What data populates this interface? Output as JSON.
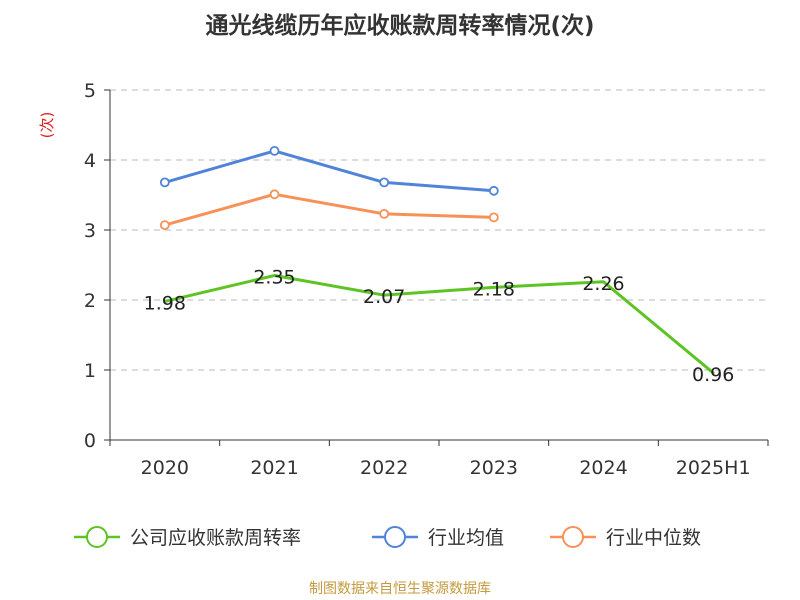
{
  "title": "通光线缆历年应收账款周转率情况(次)",
  "source_note": "制图数据来自恒生聚源数据库",
  "colors": {
    "company": "#5dc424",
    "industry_avg": "#4f84d8",
    "industry_median": "#f79158",
    "source_note": "#c49a3c",
    "y_unit": "#e02020",
    "grid": "#c8c8c8",
    "axis": "#333333"
  },
  "chart_data": {
    "type": "line",
    "title": "通光线缆历年应收账款周转率情况(次)",
    "xlabel": "",
    "ylabel": "(次)",
    "categories": [
      "2020",
      "2021",
      "2022",
      "2023",
      "2024",
      "2025H1"
    ],
    "ylim": [
      0,
      5
    ],
    "yticks": [
      0,
      1,
      2,
      3,
      4,
      5
    ],
    "grid": true,
    "legend_position": "bottom",
    "series": [
      {
        "name": "公司应收账款周转率",
        "color": "#5dc424",
        "values": [
          1.98,
          2.35,
          2.07,
          2.18,
          2.26,
          0.96
        ],
        "labels": [
          "1.98",
          "2.35",
          "2.07",
          "2.18",
          "2.26",
          "0.96"
        ]
      },
      {
        "name": "行业均值",
        "color": "#4f84d8",
        "values": [
          3.68,
          4.13,
          3.68,
          3.56,
          null,
          null
        ]
      },
      {
        "name": "行业中位数",
        "color": "#f79158",
        "values": [
          3.07,
          3.51,
          3.23,
          3.18,
          null,
          null
        ]
      }
    ]
  }
}
